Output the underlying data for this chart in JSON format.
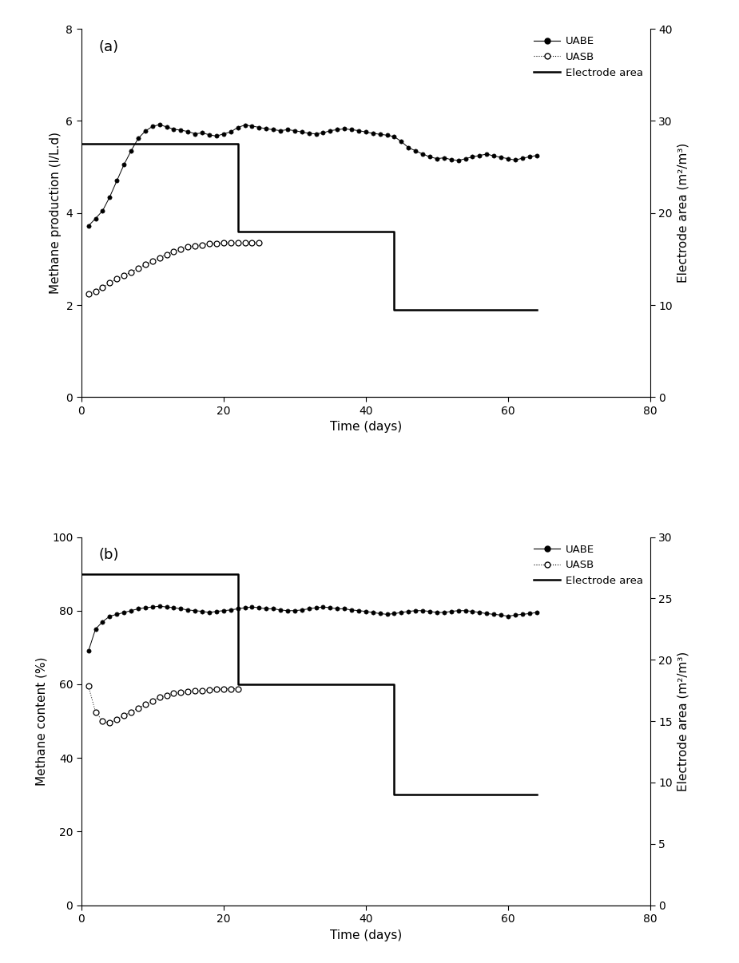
{
  "panel_a": {
    "label": "(a)",
    "ylabel_left": "Methane production (l/L.d)",
    "ylabel_right": "Electrode area (m²/m³)",
    "ylim_left": [
      0,
      8
    ],
    "ylim_right": [
      0,
      40
    ],
    "yticks_left": [
      0,
      2,
      4,
      6,
      8
    ],
    "yticks_right": [
      0,
      10,
      20,
      30,
      40
    ],
    "xlim": [
      0,
      80
    ],
    "xticks": [
      0,
      20,
      40,
      60,
      80
    ],
    "xlabel": "Time (days)",
    "uabe_x": [
      1,
      2,
      3,
      4,
      5,
      6,
      7,
      8,
      9,
      10,
      11,
      12,
      13,
      14,
      15,
      16,
      17,
      18,
      19,
      20,
      21,
      22,
      23,
      24,
      25,
      26,
      27,
      28,
      29,
      30,
      31,
      32,
      33,
      34,
      35,
      36,
      37,
      38,
      39,
      40,
      41,
      42,
      43,
      44,
      45,
      46,
      47,
      48,
      49,
      50,
      51,
      52,
      53,
      54,
      55,
      56,
      57,
      58,
      59,
      60,
      61,
      62,
      63,
      64
    ],
    "uabe_y": [
      3.72,
      3.88,
      4.05,
      4.35,
      4.7,
      5.05,
      5.35,
      5.62,
      5.78,
      5.88,
      5.92,
      5.87,
      5.82,
      5.8,
      5.77,
      5.72,
      5.74,
      5.7,
      5.67,
      5.72,
      5.76,
      5.86,
      5.91,
      5.89,
      5.86,
      5.83,
      5.81,
      5.79,
      5.81,
      5.79,
      5.76,
      5.73,
      5.72,
      5.74,
      5.79,
      5.81,
      5.83,
      5.81,
      5.79,
      5.76,
      5.73,
      5.71,
      5.69,
      5.66,
      5.55,
      5.42,
      5.35,
      5.28,
      5.22,
      5.18,
      5.2,
      5.16,
      5.14,
      5.18,
      5.22,
      5.25,
      5.28,
      5.24,
      5.21,
      5.18,
      5.15,
      5.19,
      5.22,
      5.25
    ],
    "uasb_x": [
      1,
      2,
      3,
      4,
      5,
      6,
      7,
      8,
      9,
      10,
      11,
      12,
      13,
      14,
      15,
      16,
      17,
      18,
      19,
      20,
      21,
      22,
      23,
      24,
      25
    ],
    "uasb_y": [
      2.25,
      2.3,
      2.38,
      2.48,
      2.57,
      2.64,
      2.72,
      2.8,
      2.88,
      2.95,
      3.03,
      3.1,
      3.17,
      3.22,
      3.26,
      3.29,
      3.31,
      3.33,
      3.34,
      3.35,
      3.35,
      3.35,
      3.35,
      3.36,
      3.35
    ],
    "electrode_step_x": [
      0,
      22,
      22,
      44,
      44,
      64
    ],
    "electrode_step_y": [
      27.5,
      27.5,
      18.0,
      18.0,
      9.5,
      9.5
    ],
    "legend_items": [
      "UABE",
      "UASB",
      "Electrode area"
    ]
  },
  "panel_b": {
    "label": "(b)",
    "ylabel_left": "Methane content (%)",
    "ylabel_right": "Electrode area (m²/m³)",
    "ylim_left": [
      0,
      100
    ],
    "ylim_right": [
      0,
      30
    ],
    "yticks_left": [
      0,
      20,
      40,
      60,
      80,
      100
    ],
    "yticks_right": [
      0,
      5,
      10,
      15,
      20,
      25,
      30
    ],
    "xlim": [
      0,
      80
    ],
    "xticks": [
      0,
      20,
      40,
      60,
      80
    ],
    "xlabel": "Time (days)",
    "uabe_x": [
      1,
      2,
      3,
      4,
      5,
      6,
      7,
      8,
      9,
      10,
      11,
      12,
      13,
      14,
      15,
      16,
      17,
      18,
      19,
      20,
      21,
      22,
      23,
      24,
      25,
      26,
      27,
      28,
      29,
      30,
      31,
      32,
      33,
      34,
      35,
      36,
      37,
      38,
      39,
      40,
      41,
      42,
      43,
      44,
      45,
      46,
      47,
      48,
      49,
      50,
      51,
      52,
      53,
      54,
      55,
      56,
      57,
      58,
      59,
      60,
      61,
      62,
      63,
      64
    ],
    "uabe_y": [
      69,
      75,
      77,
      78.5,
      79,
      79.5,
      80,
      80.5,
      80.8,
      81,
      81.2,
      81.0,
      80.8,
      80.5,
      80.2,
      80.0,
      79.8,
      79.5,
      79.8,
      80.0,
      80.2,
      80.5,
      80.8,
      81.0,
      80.8,
      80.5,
      80.5,
      80.2,
      80.0,
      80.0,
      80.2,
      80.5,
      80.8,
      81.0,
      80.8,
      80.5,
      80.5,
      80.2,
      80.0,
      79.8,
      79.5,
      79.2,
      79.0,
      79.2,
      79.5,
      79.8,
      80.0,
      80.0,
      79.8,
      79.5,
      79.5,
      79.8,
      80.0,
      80.0,
      79.8,
      79.5,
      79.2,
      79.0,
      78.8,
      78.5,
      78.8,
      79.0,
      79.2,
      79.5
    ],
    "uasb_x": [
      1,
      2,
      3,
      4,
      5,
      6,
      7,
      8,
      9,
      10,
      11,
      12,
      13,
      14,
      15,
      16,
      17,
      18,
      19,
      20,
      21,
      22
    ],
    "uasb_y": [
      59.5,
      52.5,
      50.0,
      49.5,
      50.5,
      51.5,
      52.5,
      53.5,
      54.5,
      55.5,
      56.5,
      57.0,
      57.5,
      57.8,
      58.0,
      58.2,
      58.3,
      58.5,
      58.6,
      58.7,
      58.8,
      58.8
    ],
    "electrode_step_x": [
      0,
      22,
      22,
      44,
      44,
      64
    ],
    "electrode_step_y": [
      27.0,
      27.0,
      18.0,
      18.0,
      9.0,
      9.0
    ],
    "legend_items": [
      "UABE",
      "UASB",
      "Electrode area"
    ]
  },
  "colors": {
    "uabe": "#000000",
    "uasb": "#000000",
    "electrode": "#000000",
    "background": "#ffffff"
  },
  "figsize": [
    9.25,
    12.06
  ],
  "dpi": 100
}
